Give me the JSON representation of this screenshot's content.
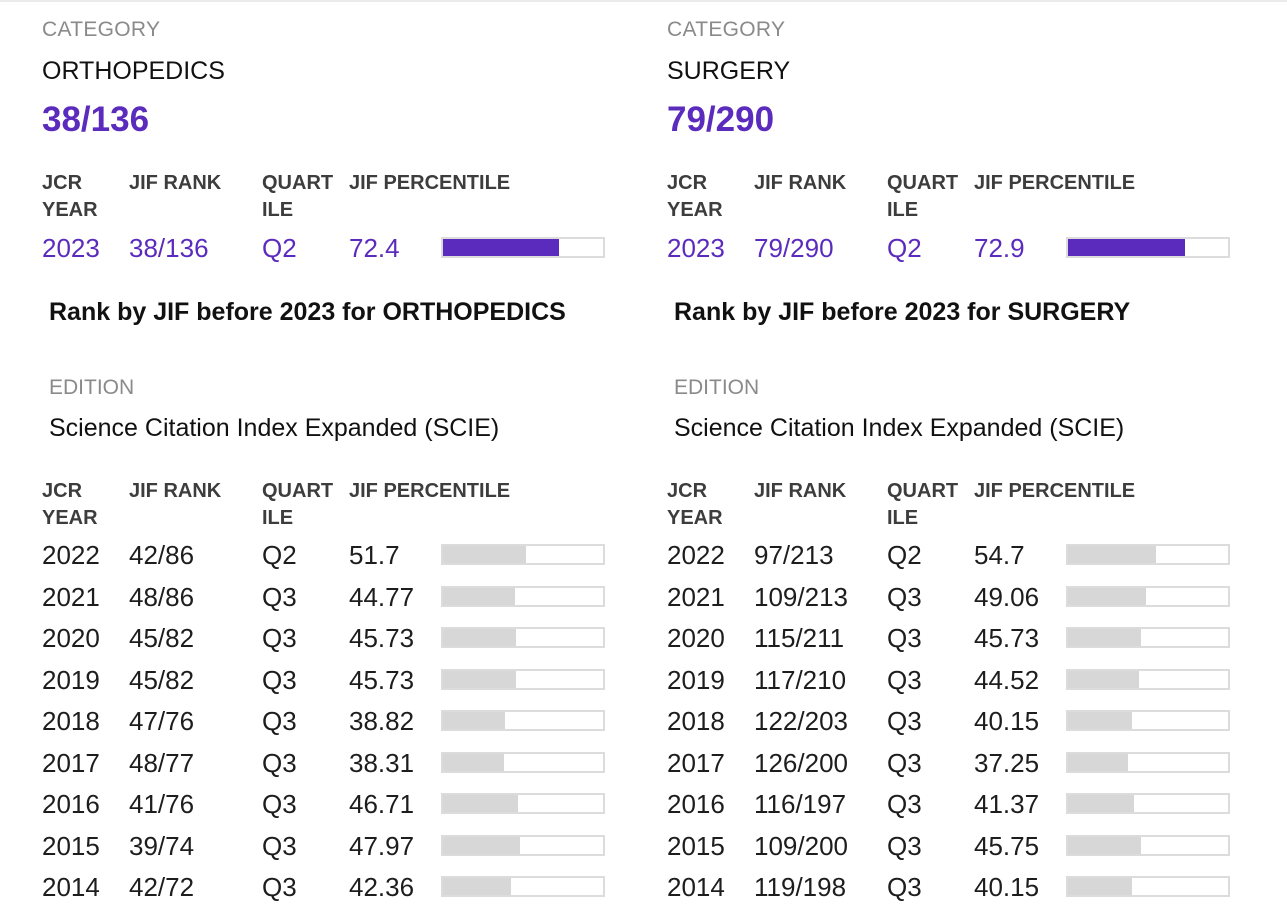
{
  "columns": [
    {
      "category_label": "CATEGORY",
      "category_name": "ORTHOPEDICS",
      "rank": "38/136",
      "headers": {
        "year": "JCR YEAR",
        "rank": "JIF RANK",
        "quartile": "QUART ILE",
        "percentile": "JIF PERCENTILE"
      },
      "current": {
        "year": "2023",
        "rank": "38/136",
        "quartile": "Q2",
        "percentile": "72.4"
      },
      "history_title": "Rank by JIF before 2023 for ORTHOPEDICS",
      "edition_label": "EDITION",
      "edition_value": "Science Citation Index Expanded (SCIE)",
      "history": [
        {
          "year": "2022",
          "rank": "42/86",
          "quartile": "Q2",
          "percentile": "51.7"
        },
        {
          "year": "2021",
          "rank": "48/86",
          "quartile": "Q3",
          "percentile": "44.77"
        },
        {
          "year": "2020",
          "rank": "45/82",
          "quartile": "Q3",
          "percentile": "45.73"
        },
        {
          "year": "2019",
          "rank": "45/82",
          "quartile": "Q3",
          "percentile": "45.73"
        },
        {
          "year": "2018",
          "rank": "47/76",
          "quartile": "Q3",
          "percentile": "38.82"
        },
        {
          "year": "2017",
          "rank": "48/77",
          "quartile": "Q3",
          "percentile": "38.31"
        },
        {
          "year": "2016",
          "rank": "41/76",
          "quartile": "Q3",
          "percentile": "46.71"
        },
        {
          "year": "2015",
          "rank": "39/74",
          "quartile": "Q3",
          "percentile": "47.97"
        },
        {
          "year": "2014",
          "rank": "42/72",
          "quartile": "Q3",
          "percentile": "42.36"
        }
      ]
    },
    {
      "category_label": "CATEGORY",
      "category_name": "SURGERY",
      "rank": "79/290",
      "headers": {
        "year": "JCR YEAR",
        "rank": "JIF RANK",
        "quartile": "QUART ILE",
        "percentile": "JIF PERCENTILE"
      },
      "current": {
        "year": "2023",
        "rank": "79/290",
        "quartile": "Q2",
        "percentile": "72.9"
      },
      "history_title": "Rank by JIF before 2023 for SURGERY",
      "edition_label": "EDITION",
      "edition_value": "Science Citation Index Expanded (SCIE)",
      "history": [
        {
          "year": "2022",
          "rank": "97/213",
          "quartile": "Q2",
          "percentile": "54.7"
        },
        {
          "year": "2021",
          "rank": "109/213",
          "quartile": "Q3",
          "percentile": "49.06"
        },
        {
          "year": "2020",
          "rank": "115/211",
          "quartile": "Q3",
          "percentile": "45.73"
        },
        {
          "year": "2019",
          "rank": "117/210",
          "quartile": "Q3",
          "percentile": "44.52"
        },
        {
          "year": "2018",
          "rank": "122/203",
          "quartile": "Q3",
          "percentile": "40.15"
        },
        {
          "year": "2017",
          "rank": "126/200",
          "quartile": "Q3",
          "percentile": "37.25"
        },
        {
          "year": "2016",
          "rank": "116/197",
          "quartile": "Q3",
          "percentile": "41.37"
        },
        {
          "year": "2015",
          "rank": "109/200",
          "quartile": "Q3",
          "percentile": "45.75"
        },
        {
          "year": "2014",
          "rank": "119/198",
          "quartile": "Q3",
          "percentile": "40.15"
        }
      ]
    }
  ],
  "colors": {
    "accent": "#5b2bbd",
    "bar_empty": "#d7d7d7",
    "bar_border": "#dcdcdc"
  }
}
